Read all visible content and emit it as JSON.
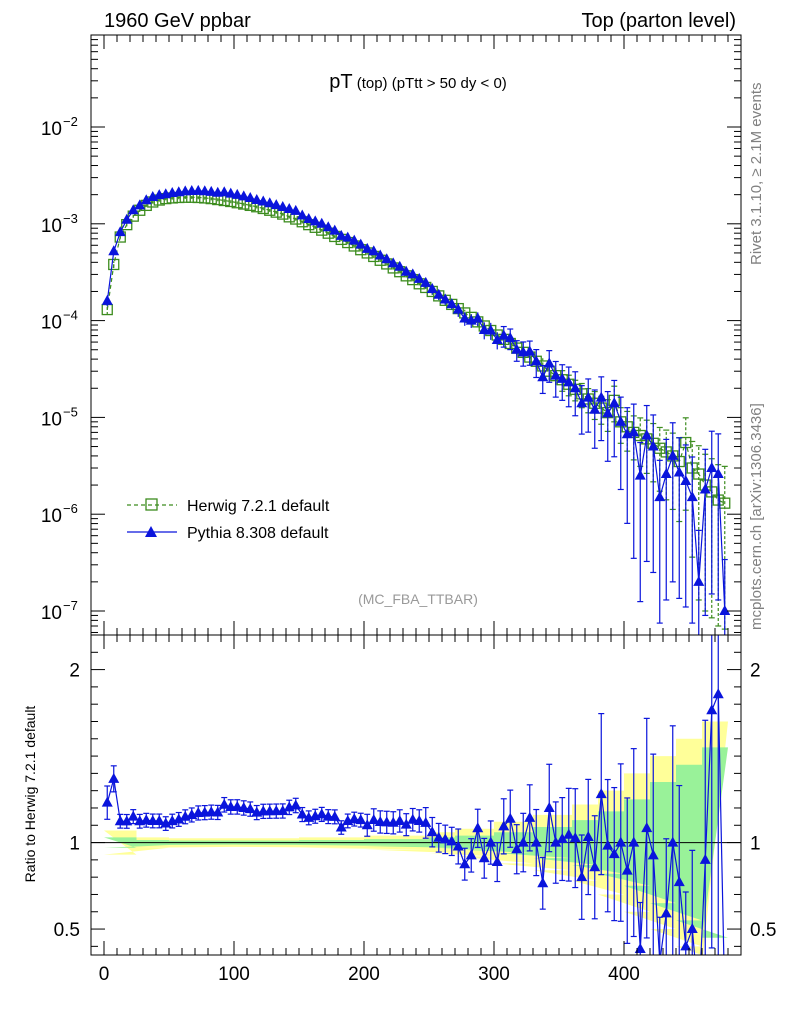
{
  "header": {
    "left": "1960 GeV ppbar",
    "right": "Top (parton level)"
  },
  "side_labels": {
    "rivet": "Rivet 3.1.10, ≥ 2.1M events",
    "mcplots": "mcplots.cern.ch [arXiv:1306.3436]"
  },
  "chart_data": {
    "type": "line",
    "title_main": "pT",
    "title_sub": " (top)  (pTtt > 50 dy < 0)",
    "ref_label": "(MC_FBA_TTBAR)",
    "xlim": [
      -10,
      490
    ],
    "xticks": [
      0,
      100,
      200,
      300,
      400
    ],
    "xtick_labels": [
      "0",
      "100",
      "200",
      "300",
      "400"
    ],
    "main": {
      "yscale": "log",
      "ylim_exp": [
        -7.3,
        -3.0
      ],
      "yticks": [
        {
          "exp": -2,
          "base": "10",
          "sup": "−2"
        },
        {
          "exp": -3,
          "base": "10",
          "sup": "−3"
        },
        {
          "exp": -4,
          "base": "10",
          "sup": "−4"
        },
        {
          "exp": -5,
          "base": "10",
          "sup": "−5"
        },
        {
          "exp": -6,
          "base": "10",
          "sup": "−6"
        },
        {
          "exp": -7,
          "base": "10",
          "sup": "−7"
        }
      ]
    },
    "ratio": {
      "ylabel": "Ratio to Herwig 7.2.1 default",
      "ylim": [
        0.35,
        2.2
      ],
      "yticks": [
        0.5,
        1,
        2
      ],
      "ytick_labels": [
        "0.5",
        "1",
        "2"
      ],
      "band_x": [
        0,
        25,
        50,
        100,
        150,
        200,
        250,
        270,
        300,
        330,
        360,
        380,
        400,
        420,
        440,
        460,
        480
      ],
      "band_outer": [
        0.07,
        0.03,
        0.025,
        0.025,
        0.03,
        0.04,
        0.06,
        0.08,
        0.12,
        0.16,
        0.22,
        0.3,
        0.4,
        0.5,
        0.6,
        0.7,
        0.85
      ],
      "band_inner": [
        0.03,
        0.015,
        0.012,
        0.012,
        0.015,
        0.02,
        0.03,
        0.04,
        0.06,
        0.09,
        0.13,
        0.18,
        0.25,
        0.35,
        0.45,
        0.55,
        0.65
      ]
    },
    "x": [
      2.5,
      7.5,
      12.5,
      17.5,
      22.5,
      27.5,
      32.5,
      37.5,
      42.5,
      47.5,
      52.5,
      57.5,
      62.5,
      67.5,
      72.5,
      77.5,
      82.5,
      87.5,
      92.5,
      97.5,
      102.5,
      107.5,
      112.5,
      117.5,
      122.5,
      127.5,
      132.5,
      137.5,
      142.5,
      147.5,
      152.5,
      157.5,
      162.5,
      167.5,
      172.5,
      177.5,
      182.5,
      187.5,
      192.5,
      197.5,
      202.5,
      207.5,
      212.5,
      217.5,
      222.5,
      227.5,
      232.5,
      237.5,
      242.5,
      247.5,
      252.5,
      257.5,
      262.5,
      267.5,
      272.5,
      277.5,
      282.5,
      287.5,
      292.5,
      297.5,
      302.5,
      307.5,
      312.5,
      317.5,
      322.5,
      327.5,
      332.5,
      337.5,
      342.5,
      347.5,
      352.5,
      357.5,
      362.5,
      367.5,
      372.5,
      377.5,
      382.5,
      387.5,
      392.5,
      397.5,
      402.5,
      407.5,
      412.5,
      417.5,
      422.5,
      427.5,
      432.5,
      437.5,
      442.5,
      447.5,
      452.5,
      457.5,
      462.5,
      467.5,
      472.5,
      477.5
    ],
    "series": [
      {
        "name": "Herwig 7.2.1 default",
        "color": "#3c8c1e",
        "marker": "open-square",
        "dashed": true,
        "y": [
          0.00013,
          0.00038,
          0.00073,
          0.00098,
          0.0012,
          0.00138,
          0.00155,
          0.00168,
          0.00176,
          0.00182,
          0.00185,
          0.00187,
          0.00188,
          0.00188,
          0.00187,
          0.00185,
          0.00182,
          0.00178,
          0.00174,
          0.0017,
          0.00165,
          0.0016,
          0.00155,
          0.0015,
          0.00144,
          0.00138,
          0.00132,
          0.00126,
          0.00118,
          0.00112,
          0.00105,
          0.00098,
          0.00092,
          0.00086,
          0.0008,
          0.00074,
          0.00069,
          0.00064,
          0.00059,
          0.00054,
          0.0005,
          0.00046,
          0.00042,
          0.000385,
          0.00035,
          0.00032,
          0.00029,
          0.000265,
          0.00024,
          0.00022,
          0.0002,
          0.00018,
          0.000162,
          0.000147,
          0.000133,
          0.00012,
          0.000108,
          9.7e-05,
          8.8e-05,
          7.9e-05,
          7.1e-05,
          6.4e-05,
          5.8e-05,
          5.2e-05,
          4.7e-05,
          4.2e-05,
          3.8e-05,
          3.4e-05,
          3e-05,
          2.7e-05,
          2.45e-05,
          2.2e-05,
          1.95e-05,
          1.75e-05,
          1.55e-05,
          1.4e-05,
          1.25e-05,
          1.12e-05,
          1.5e-05,
          9e-06,
          8e-06,
          7e-06,
          6.5e-06,
          6e-06,
          5.4e-06,
          4.8e-06,
          4.4e-06,
          4e-06,
          3.5e-06,
          5.5e-06,
          3e-06,
          2.6e-06,
          2e-06,
          1.7e-06,
          1.4e-06,
          1.3e-06
        ],
        "err_lo": [
          0.03,
          0.02,
          0.01,
          0.01,
          0.01,
          0.01,
          0.01,
          0.01,
          0.01,
          0.01,
          0.01,
          0.01,
          0.01,
          0.01,
          0.01,
          0.01,
          0.01,
          0.01,
          0.01,
          0.01,
          0.01,
          0.01,
          0.01,
          0.01,
          0.01,
          0.01,
          0.01,
          0.01,
          0.01,
          0.01,
          0.01,
          0.01,
          0.01,
          0.01,
          0.01,
          0.01,
          0.01,
          0.01,
          0.01,
          0.01,
          0.01,
          0.01,
          0.01,
          0.01,
          0.01,
          0.01,
          0.01,
          0.01,
          0.01,
          0.01,
          0.02,
          0.02,
          0.02,
          0.02,
          0.02,
          0.02,
          0.02,
          0.03,
          0.03,
          0.03,
          0.03,
          0.03,
          0.03,
          0.04,
          0.04,
          0.04,
          0.04,
          0.05,
          0.05,
          0.05,
          0.06,
          0.06,
          0.06,
          0.07,
          0.07,
          0.08,
          0.08,
          0.09,
          0.1,
          0.1,
          0.11,
          0.12,
          0.13,
          0.14,
          0.15,
          0.16,
          0.17,
          0.18,
          0.19,
          0.2,
          0.22,
          0.24,
          0.27,
          0.3,
          0.33,
          0.35
        ],
        "err_hi": [
          0.03,
          0.02,
          0.01,
          0.01,
          0.01,
          0.01,
          0.01,
          0.01,
          0.01,
          0.01,
          0.01,
          0.01,
          0.01,
          0.01,
          0.01,
          0.01,
          0.01,
          0.01,
          0.01,
          0.01,
          0.01,
          0.01,
          0.01,
          0.01,
          0.01,
          0.01,
          0.01,
          0.01,
          0.01,
          0.01,
          0.01,
          0.01,
          0.01,
          0.01,
          0.01,
          0.01,
          0.01,
          0.01,
          0.01,
          0.01,
          0.01,
          0.01,
          0.01,
          0.01,
          0.01,
          0.01,
          0.01,
          0.01,
          0.01,
          0.01,
          0.02,
          0.02,
          0.02,
          0.02,
          0.02,
          0.02,
          0.02,
          0.03,
          0.03,
          0.03,
          0.03,
          0.03,
          0.03,
          0.04,
          0.04,
          0.04,
          0.04,
          0.05,
          0.05,
          0.05,
          0.06,
          0.06,
          0.06,
          0.07,
          0.07,
          0.08,
          0.08,
          0.09,
          0.1,
          0.1,
          0.11,
          0.12,
          0.13,
          0.14,
          0.15,
          0.16,
          0.17,
          0.18,
          0.19,
          0.2,
          0.22,
          0.24,
          0.27,
          0.3,
          0.33,
          0.35
        ]
      },
      {
        "name": "Pythia 8.308 default",
        "color": "#0a14dc",
        "marker": "filled-triangle",
        "dashed": false,
        "y": [
          0.00016,
          0.00052,
          0.00082,
          0.0011,
          0.00138,
          0.00155,
          0.00175,
          0.00189,
          0.00198,
          0.00202,
          0.00208,
          0.00212,
          0.00216,
          0.00218,
          0.00219,
          0.00217,
          0.00214,
          0.00209,
          0.00212,
          0.00205,
          0.00199,
          0.00192,
          0.00185,
          0.00176,
          0.0017,
          0.00163,
          0.00156,
          0.00149,
          0.00142,
          0.00136,
          0.00122,
          0.00112,
          0.00106,
          0.001,
          0.00092,
          0.00085,
          0.00075,
          0.00072,
          0.00067,
          0.00061,
          0.00055,
          0.00052,
          0.00047,
          0.00043,
          0.00039,
          0.00036,
          0.00032,
          0.0003,
          0.00027,
          0.000245,
          0.000212,
          0.000185,
          0.000165,
          0.000148,
          0.00013,
          0.000105,
          0.0001,
          0.000105,
          8e-05,
          7.9e-05,
          6.3e-05,
          7e-05,
          6.6e-05,
          5e-05,
          4.7e-05,
          4.8e-05,
          3.8e-05,
          2.6e-05,
          3.6e-05,
          2.7e-05,
          2.5e-05,
          2.3e-05,
          2e-05,
          1.4e-05,
          1.6e-05,
          1.2e-05,
          1.6e-05,
          1.1e-05,
          1.4e-05,
          9e-06,
          6.7e-06,
          7e-06,
          2.5e-06,
          6.5e-06,
          5e-06,
          1.5e-06,
          2.6e-06,
          4e-06,
          2.7e-06,
          2.2e-06,
          1.5e-06,
          2e-07,
          1.8e-06,
          3e-06,
          2.6e-06,
          1e-07
        ],
        "err_lo": [
          0.03,
          0.02,
          0.01,
          0.01,
          0.01,
          0.01,
          0.01,
          0.01,
          0.01,
          0.01,
          0.01,
          0.01,
          0.01,
          0.01,
          0.01,
          0.01,
          0.01,
          0.01,
          0.01,
          0.01,
          0.01,
          0.01,
          0.01,
          0.01,
          0.01,
          0.01,
          0.01,
          0.01,
          0.01,
          0.01,
          0.01,
          0.01,
          0.01,
          0.01,
          0.01,
          0.01,
          0.01,
          0.01,
          0.01,
          0.01,
          0.02,
          0.02,
          0.02,
          0.02,
          0.02,
          0.02,
          0.02,
          0.02,
          0.02,
          0.03,
          0.03,
          0.03,
          0.03,
          0.03,
          0.04,
          0.04,
          0.04,
          0.04,
          0.05,
          0.05,
          0.05,
          0.06,
          0.06,
          0.06,
          0.07,
          0.07,
          0.08,
          0.08,
          0.09,
          0.1,
          0.1,
          0.11,
          0.12,
          0.13,
          0.14,
          0.15,
          0.16,
          0.17,
          0.18,
          0.2,
          0.22,
          0.24,
          0.3,
          0.26,
          0.28,
          0.35,
          0.32,
          0.3,
          0.32,
          0.34,
          0.4,
          0.6,
          0.4,
          0.35,
          0.4,
          0.6
        ],
        "err_hi": [
          0.03,
          0.02,
          0.01,
          0.01,
          0.01,
          0.01,
          0.01,
          0.01,
          0.01,
          0.01,
          0.01,
          0.01,
          0.01,
          0.01,
          0.01,
          0.01,
          0.01,
          0.01,
          0.01,
          0.01,
          0.01,
          0.01,
          0.01,
          0.01,
          0.01,
          0.01,
          0.01,
          0.01,
          0.01,
          0.01,
          0.01,
          0.01,
          0.01,
          0.01,
          0.01,
          0.01,
          0.01,
          0.01,
          0.01,
          0.01,
          0.02,
          0.02,
          0.02,
          0.02,
          0.02,
          0.02,
          0.02,
          0.02,
          0.02,
          0.03,
          0.03,
          0.03,
          0.03,
          0.03,
          0.04,
          0.04,
          0.04,
          0.04,
          0.05,
          0.05,
          0.05,
          0.06,
          0.06,
          0.06,
          0.07,
          0.07,
          0.08,
          0.08,
          0.09,
          0.1,
          0.1,
          0.11,
          0.12,
          0.13,
          0.14,
          0.15,
          0.16,
          0.17,
          0.18,
          0.2,
          0.22,
          0.24,
          0.3,
          0.26,
          0.28,
          0.35,
          0.32,
          0.3,
          0.32,
          0.34,
          0.4,
          0.6,
          0.4,
          0.35,
          0.4,
          0.6
        ]
      }
    ]
  }
}
